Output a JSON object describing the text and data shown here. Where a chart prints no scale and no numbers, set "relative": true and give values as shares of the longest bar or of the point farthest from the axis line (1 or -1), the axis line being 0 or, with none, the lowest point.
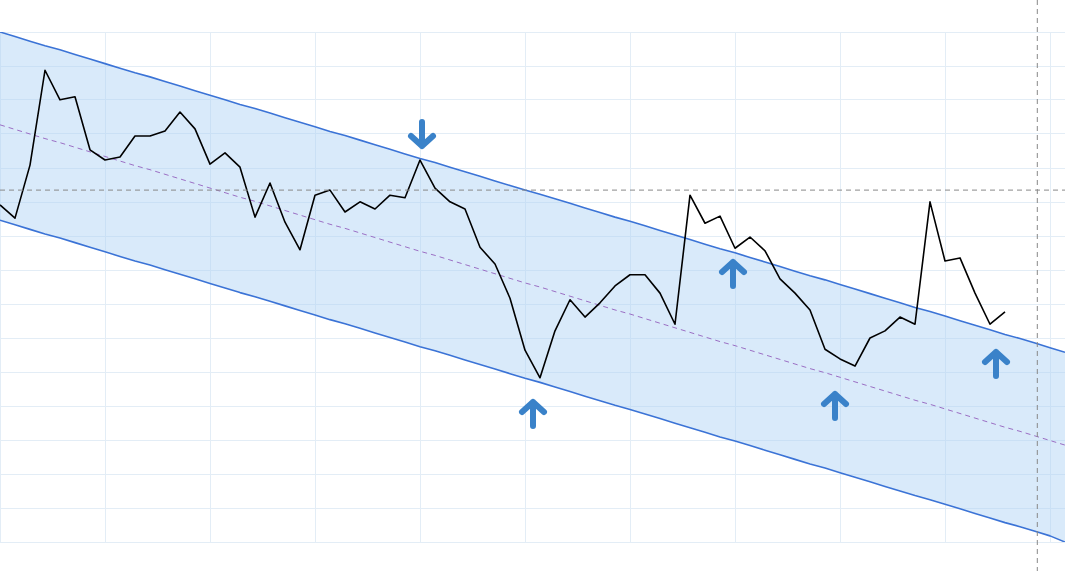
{
  "chart_data": {
    "type": "line",
    "relative": true,
    "grid": true,
    "legend": false,
    "categories": [
      null,
      null,
      null,
      null,
      null,
      null,
      null,
      null,
      null,
      null,
      null,
      null,
      null,
      null,
      null,
      null,
      null,
      null,
      null,
      null,
      null,
      null,
      null,
      null,
      null,
      null,
      null,
      null,
      null,
      null,
      null,
      null,
      null,
      null,
      null,
      null,
      null,
      null,
      null,
      null,
      null,
      null,
      null,
      null,
      null,
      null,
      null,
      null,
      null,
      null,
      null,
      null,
      null,
      null,
      null,
      null,
      null,
      null,
      null,
      null,
      null,
      null,
      null,
      null,
      null,
      null,
      null,
      null,
      null,
      null,
      null,
      null
    ],
    "series": [
      {
        "color": "#000000",
        "line_style": "solid",
        "values": [
          0.661,
          0.635,
          0.739,
          0.925,
          0.867,
          0.873,
          0.769,
          0.749,
          0.755,
          0.796,
          0.796,
          0.806,
          0.843,
          0.81,
          0.741,
          0.763,
          0.735,
          0.637,
          0.704,
          0.627,
          0.573,
          0.68,
          0.69,
          0.647,
          0.667,
          0.653,
          0.68,
          0.675,
          0.749,
          0.694,
          0.667,
          0.653,
          0.578,
          0.545,
          0.478,
          0.376,
          0.322,
          0.414,
          0.475,
          0.441,
          0.469,
          0.502,
          0.524,
          0.524,
          0.488,
          0.427,
          0.68,
          0.625,
          0.639,
          0.576,
          0.598,
          0.571,
          0.516,
          0.488,
          0.455,
          0.378,
          0.359,
          0.345,
          0.4,
          0.414,
          0.441,
          0.427,
          0.667,
          0.551,
          0.557,
          0.488,
          0.427,
          0.451,
          null,
          null,
          null,
          null
        ]
      },
      {
        "color": "#3b73d6",
        "line_style": "solid",
        "values": [
          1.0,
          0.991,
          0.982,
          0.973,
          0.965,
          0.956,
          0.947,
          0.938,
          0.929,
          0.92,
          0.912,
          0.903,
          0.894,
          0.885,
          0.876,
          0.867,
          0.858,
          0.85,
          0.841,
          0.832,
          0.823,
          0.814,
          0.805,
          0.797,
          0.788,
          0.779,
          0.77,
          0.761,
          0.752,
          0.744,
          0.735,
          0.726,
          0.717,
          0.708,
          0.699,
          0.69,
          0.682,
          0.673,
          0.664,
          0.655,
          0.646,
          0.637,
          0.629,
          0.62,
          0.611,
          0.602,
          0.593,
          0.584,
          0.575,
          0.567,
          0.558,
          0.549,
          0.54,
          0.531,
          0.522,
          0.514,
          0.505,
          0.496,
          0.487,
          0.478,
          0.469,
          0.46,
          0.452,
          0.443,
          0.434,
          0.425,
          0.416,
          0.407,
          0.399,
          0.39,
          0.381,
          0.372
        ]
      },
      {
        "color": "#3b73d6",
        "line_style": "solid",
        "values": [
          0.631,
          0.622,
          0.613,
          0.604,
          0.596,
          0.587,
          0.578,
          0.569,
          0.56,
          0.551,
          0.543,
          0.534,
          0.525,
          0.516,
          0.507,
          0.498,
          0.489,
          0.481,
          0.472,
          0.463,
          0.454,
          0.445,
          0.436,
          0.428,
          0.419,
          0.41,
          0.401,
          0.392,
          0.383,
          0.375,
          0.366,
          0.357,
          0.348,
          0.339,
          0.33,
          0.321,
          0.313,
          0.304,
          0.295,
          0.286,
          0.277,
          0.268,
          0.26,
          0.251,
          0.242,
          0.233,
          0.224,
          0.215,
          0.206,
          0.198,
          0.189,
          0.18,
          0.171,
          0.162,
          0.153,
          0.145,
          0.136,
          0.127,
          0.118,
          0.109,
          0.1,
          0.091,
          0.083,
          0.074,
          0.065,
          0.056,
          0.047,
          0.038,
          0.03,
          0.021,
          0.012,
          0.0
        ]
      },
      {
        "color": "#9b6fc4",
        "line_style": "dashed",
        "values": [
          0.818,
          0.809,
          0.8,
          0.791,
          0.783,
          0.774,
          0.765,
          0.756,
          0.747,
          0.738,
          0.73,
          0.721,
          0.712,
          0.703,
          0.694,
          0.685,
          0.676,
          0.668,
          0.659,
          0.65,
          0.641,
          0.632,
          0.623,
          0.615,
          0.606,
          0.597,
          0.588,
          0.579,
          0.57,
          0.562,
          0.553,
          0.544,
          0.535,
          0.526,
          0.517,
          0.508,
          0.5,
          0.491,
          0.482,
          0.473,
          0.464,
          0.455,
          0.447,
          0.438,
          0.429,
          0.42,
          0.411,
          0.402,
          0.393,
          0.385,
          0.376,
          0.367,
          0.358,
          0.349,
          0.34,
          0.332,
          0.323,
          0.314,
          0.305,
          0.296,
          0.287,
          0.278,
          0.27,
          0.261,
          0.252,
          0.243,
          0.234,
          0.225,
          0.217,
          0.208,
          0.199,
          0.19
        ],
        "upper": [
          1.0,
          0.991,
          0.982,
          0.973,
          0.965,
          0.956,
          0.947,
          0.938,
          0.929,
          0.92,
          0.912,
          0.903,
          0.894,
          0.885,
          0.876,
          0.867,
          0.858,
          0.85,
          0.841,
          0.832,
          0.823,
          0.814,
          0.805,
          0.797,
          0.788,
          0.779,
          0.77,
          0.761,
          0.752,
          0.744,
          0.735,
          0.726,
          0.717,
          0.708,
          0.699,
          0.69,
          0.682,
          0.673,
          0.664,
          0.655,
          0.646,
          0.637,
          0.629,
          0.62,
          0.611,
          0.602,
          0.593,
          0.584,
          0.575,
          0.567,
          0.558,
          0.549,
          0.54,
          0.531,
          0.522,
          0.514,
          0.505,
          0.496,
          0.487,
          0.478,
          0.469,
          0.46,
          0.452,
          0.443,
          0.434,
          0.425,
          0.416,
          0.407,
          0.399,
          0.39,
          0.381,
          0.372
        ],
        "lower": [
          0.631,
          0.622,
          0.613,
          0.604,
          0.596,
          0.587,
          0.578,
          0.569,
          0.56,
          0.551,
          0.543,
          0.534,
          0.525,
          0.516,
          0.507,
          0.498,
          0.489,
          0.481,
          0.472,
          0.463,
          0.454,
          0.445,
          0.436,
          0.428,
          0.419,
          0.41,
          0.401,
          0.392,
          0.383,
          0.375,
          0.366,
          0.357,
          0.348,
          0.339,
          0.33,
          0.321,
          0.313,
          0.304,
          0.295,
          0.286,
          0.277,
          0.268,
          0.26,
          0.251,
          0.242,
          0.233,
          0.224,
          0.215,
          0.206,
          0.198,
          0.189,
          0.18,
          0.171,
          0.162,
          0.153,
          0.145,
          0.136,
          0.127,
          0.118,
          0.109,
          0.1,
          0.091,
          0.083,
          0.074,
          0.065,
          0.056,
          0.047,
          0.038,
          0.03,
          0.021,
          0.012,
          0.0
        ]
      }
    ],
    "ref_lines": [
      {
        "axis": "y",
        "value": 0.69,
        "color": "#888888",
        "line_style": "dashed"
      }
    ]
  }
}
